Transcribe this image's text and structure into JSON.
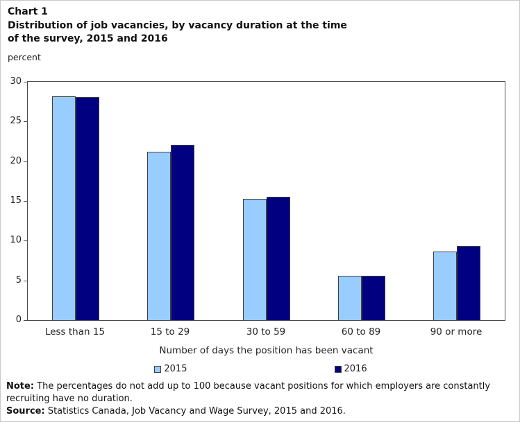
{
  "header": {
    "chart_label": "Chart 1",
    "title": "Distribution of job vacancies, by vacancy duration at the time\nof the survey, 2015 and 2016",
    "unit": "percent"
  },
  "chart_data": {
    "type": "bar",
    "title": "Distribution of job vacancies, by vacancy duration at the time of the survey, 2015 and 2016",
    "categories": [
      "Less than 15",
      "15 to 29",
      "30 to 59",
      "60 to 89",
      "90 or more"
    ],
    "series": [
      {
        "name": "2015",
        "color": "#99CCFF",
        "values": [
          28.2,
          21.2,
          15.3,
          5.6,
          8.6
        ]
      },
      {
        "name": "2016",
        "color": "#000080",
        "values": [
          28.1,
          22.1,
          15.5,
          5.6,
          9.3
        ]
      }
    ],
    "xlabel": "Number of days the position has been vacant",
    "ylabel": "percent",
    "ylim": [
      0,
      30
    ],
    "yticks": [
      0,
      5,
      10,
      15,
      20,
      25,
      30
    ],
    "grid": false,
    "legend_position": "bottom"
  },
  "notes": {
    "note_label": "Note:",
    "note_text": "The percentages do not add up to 100 because vacant positions for which employers are constantly recruiting have no duration.",
    "source_label": "Source:",
    "source_text": "Statistics Canada, Job Vacancy and Wage Survey, 2015 and 2016."
  },
  "colors": {
    "series_2015": "#99CCFF",
    "series_2016": "#000080",
    "axis": "#4a4a4a",
    "bar_border": "#404040",
    "page_border": "#c8c8c8",
    "text": "#1a1a1a"
  }
}
